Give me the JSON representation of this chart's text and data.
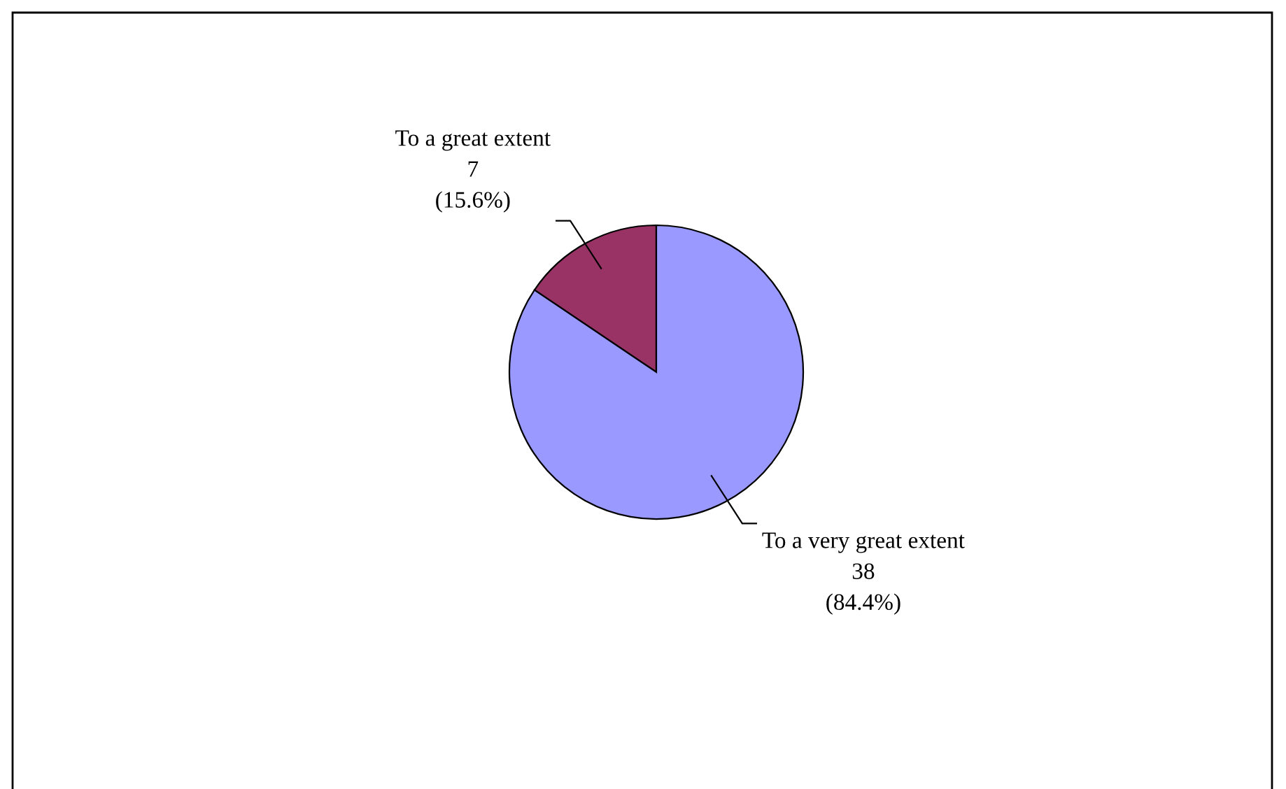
{
  "chart_data": {
    "type": "pie",
    "categories": [
      "To a great extent",
      "To a very great extent"
    ],
    "values": [
      7,
      38
    ],
    "colors": [
      "#993366",
      "#9999ff"
    ],
    "value_labels": [
      "7\n(15.6%)",
      "38\n(84.4%)"
    ],
    "legend": false
  }
}
